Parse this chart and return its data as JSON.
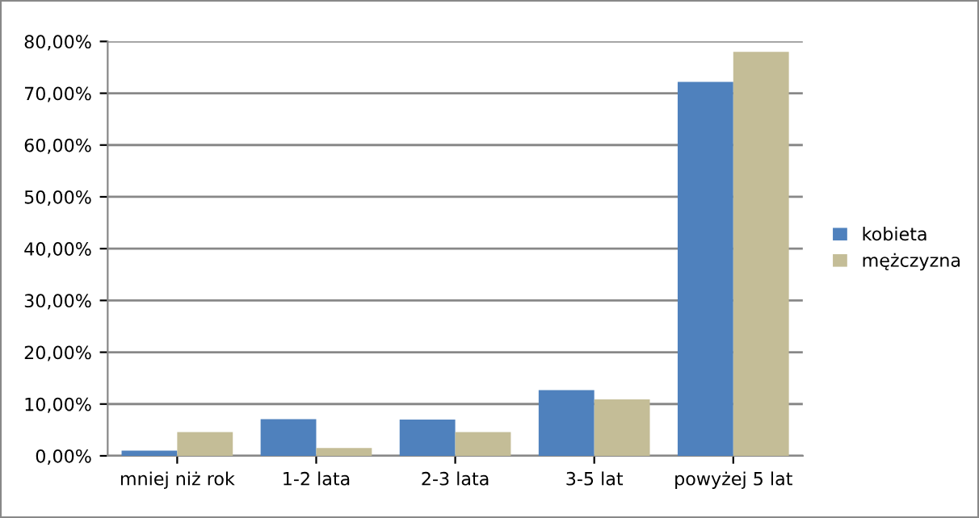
{
  "chart_data": {
    "type": "bar",
    "categories": [
      "mniej niż rok",
      "1-2 lata",
      "2-3 lata",
      "3-5 lat",
      "powyżej 5 lat"
    ],
    "series": [
      {
        "name": "kobieta",
        "color": "#4f81bd",
        "values": [
          1.0,
          7.1,
          7.0,
          12.7,
          72.2
        ]
      },
      {
        "name": "mężczyzna",
        "color": "#c4bd97",
        "values": [
          4.6,
          1.5,
          4.6,
          10.9,
          78.0
        ]
      }
    ],
    "ylim": [
      0,
      80
    ],
    "yticks": [
      {
        "value": 0,
        "label": "0,00%"
      },
      {
        "value": 10,
        "label": "10,00%"
      },
      {
        "value": 20,
        "label": "20,00%"
      },
      {
        "value": 30,
        "label": "30,00%"
      },
      {
        "value": 40,
        "label": "40,00%"
      },
      {
        "value": 50,
        "label": "50,00%"
      },
      {
        "value": 60,
        "label": "60,00%"
      },
      {
        "value": 70,
        "label": "70,00%"
      },
      {
        "value": 80,
        "label": "80,00%"
      }
    ],
    "grid": "y",
    "legend": "right"
  }
}
